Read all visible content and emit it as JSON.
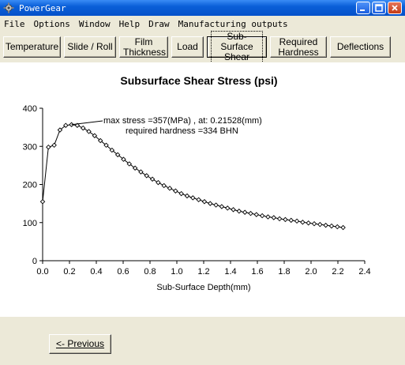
{
  "window": {
    "title": "PowerGear"
  },
  "menu": {
    "items": [
      "File",
      "Options",
      "Window",
      "Help",
      "Draw",
      "Manufacturing outputs"
    ]
  },
  "tabs": [
    {
      "label": "Temperature",
      "active": false
    },
    {
      "label": "Slide / Roll",
      "active": false
    },
    {
      "label": "Film Thickness",
      "active": false
    },
    {
      "label": "Load",
      "active": false
    },
    {
      "label": "Sub-Surface Shear",
      "active": true
    },
    {
      "label": "Required Hardness",
      "active": false
    },
    {
      "label": "Deflections",
      "active": false
    }
  ],
  "footer": {
    "previous_label": "<- Previous"
  },
  "chart_data": {
    "type": "line",
    "title": "Subsurface Shear Stress (psi)",
    "xlabel": "Sub-Surface Depth(mm)",
    "ylabel": "",
    "xlim": [
      0,
      2.4
    ],
    "ylim": [
      0,
      400
    ],
    "x_ticks": [
      "0.0",
      "0.2",
      "0.4",
      "0.6",
      "0.8",
      "1.0",
      "1.2",
      "1.4",
      "1.6",
      "1.8",
      "2.0",
      "2.2",
      "2.4"
    ],
    "y_ticks": [
      "0",
      "100",
      "200",
      "300",
      "400"
    ],
    "marker": "diamond",
    "series": [
      {
        "x": [
          0.0,
          0.0431,
          0.0861,
          0.1292,
          0.1722,
          0.2153,
          0.2583,
          0.3014,
          0.3444,
          0.3875,
          0.4306,
          0.4736,
          0.5167,
          0.5597,
          0.6028,
          0.6458,
          0.6889,
          0.7319,
          0.775,
          0.8181,
          0.8611,
          0.9042,
          0.9472,
          0.9903,
          1.0333,
          1.0764,
          1.1194,
          1.1625,
          1.2056,
          1.2486,
          1.2917,
          1.3347,
          1.3778,
          1.4208,
          1.4639,
          1.5069,
          1.55,
          1.5931,
          1.6361,
          1.6792,
          1.7222,
          1.7653,
          1.8083,
          1.8514,
          1.8944,
          1.9375,
          1.9806,
          2.0236,
          2.0667,
          2.1097,
          2.1528,
          2.1958,
          2.2389
        ],
        "values": [
          155,
          298,
          303,
          343,
          355,
          357,
          355,
          348,
          339,
          328,
          315,
          303,
          290,
          278,
          266,
          254,
          243,
          233,
          223,
          214,
          205,
          197,
          190,
          183,
          176,
          170,
          165,
          160,
          155,
          150,
          146,
          142,
          138,
          134,
          130,
          127,
          124,
          121,
          118,
          115,
          113,
          110,
          108,
          106,
          104,
          101,
          99,
          97,
          95,
          93,
          91,
          89,
          87
        ]
      }
    ],
    "annotations": [
      "max stress =357(MPa) , at: 0.21528(mm)",
      "required hardness =334 BHN"
    ],
    "colors": {
      "line": "#000000",
      "background": "#ffffff"
    }
  }
}
